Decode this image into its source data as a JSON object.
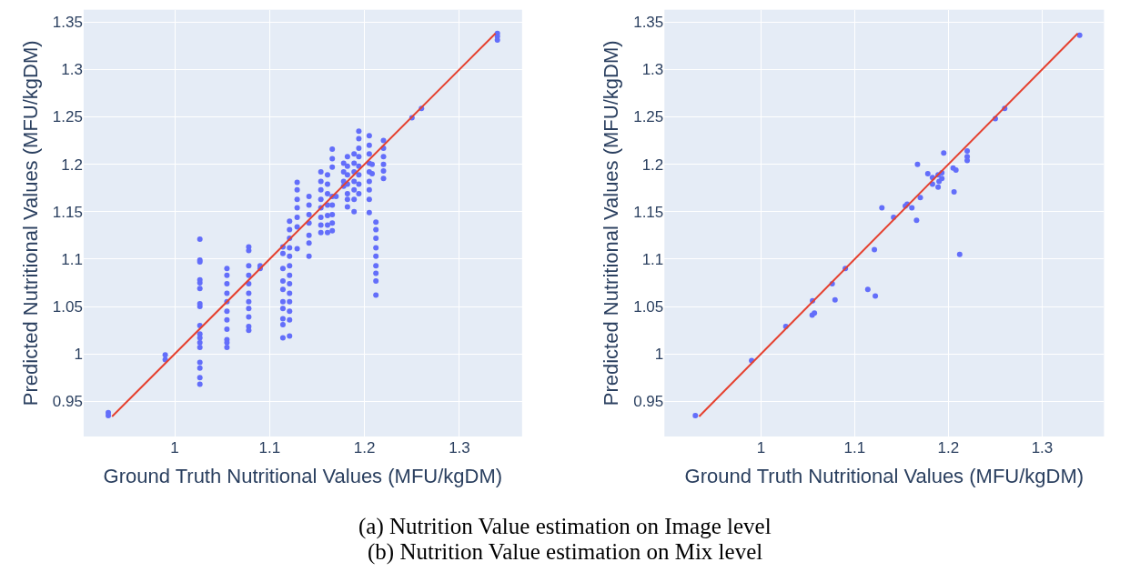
{
  "chart_data": [
    {
      "type": "scatter",
      "xlabel": "Ground Truth Nutritional Values (MFU/kgDM)",
      "ylabel": "Predicted Nutritional Values (MFU/kgDM)",
      "xlim": [
        0.904,
        1.366
      ],
      "ylim": [
        0.913,
        1.363
      ],
      "xticks": [
        1,
        1.1,
        1.2,
        1.3
      ],
      "yticks": [
        0.95,
        1,
        1.05,
        1.1,
        1.15,
        1.2,
        1.25,
        1.3,
        1.35
      ],
      "grid": true,
      "marker": "circle",
      "annotations": [
        "(a) Nutrition Value estimation on Image level"
      ],
      "series": [
        {
          "color": "#636efa",
          "x": [
            0.93,
            0.93,
            0.99,
            0.99,
            1.0265,
            1.0265,
            1.0265,
            1.0265,
            1.0265,
            1.0265,
            1.0265,
            1.0265,
            1.0265,
            1.0265,
            1.0265,
            1.0265,
            1.0265,
            1.0265,
            1.0265,
            1.0265,
            1.0265,
            1.055,
            1.055,
            1.055,
            1.055,
            1.055,
            1.055,
            1.055,
            1.055,
            1.055,
            1.055,
            1.055,
            1.078,
            1.078,
            1.078,
            1.078,
            1.078,
            1.078,
            1.078,
            1.078,
            1.078,
            1.078,
            1.078,
            1.09,
            1.09,
            1.114,
            1.114,
            1.114,
            1.114,
            1.114,
            1.114,
            1.114,
            1.114,
            1.114,
            1.114,
            1.121,
            1.121,
            1.121,
            1.121,
            1.121,
            1.121,
            1.121,
            1.121,
            1.121,
            1.121,
            1.121,
            1.121,
            1.121,
            1.129,
            1.129,
            1.129,
            1.129,
            1.129,
            1.129,
            1.129,
            1.1415,
            1.1415,
            1.1415,
            1.1415,
            1.1415,
            1.1415,
            1.1415,
            1.154,
            1.154,
            1.154,
            1.154,
            1.154,
            1.154,
            1.154,
            1.154,
            1.161,
            1.161,
            1.161,
            1.161,
            1.161,
            1.161,
            1.161,
            1.166,
            1.166,
            1.166,
            1.166,
            1.166,
            1.166,
            1.166,
            1.166,
            1.17,
            1.178,
            1.178,
            1.178,
            1.178,
            1.182,
            1.182,
            1.182,
            1.182,
            1.182,
            1.182,
            1.182,
            1.189,
            1.189,
            1.189,
            1.189,
            1.189,
            1.189,
            1.189,
            1.194,
            1.194,
            1.194,
            1.194,
            1.194,
            1.194,
            1.194,
            1.194,
            1.205,
            1.205,
            1.205,
            1.205,
            1.205,
            1.205,
            1.205,
            1.205,
            1.205,
            1.208,
            1.208,
            1.212,
            1.212,
            1.212,
            1.212,
            1.212,
            1.212,
            1.212,
            1.212,
            1.212,
            1.22,
            1.22,
            1.22,
            1.22,
            1.22,
            1.22,
            1.25,
            1.26,
            1.34,
            1.34,
            1.34
          ],
          "values": [
            0.938,
            0.935,
            0.999,
            0.994,
            1.121,
            1.099,
            1.097,
            1.078,
            1.075,
            1.069,
            1.053,
            1.05,
            1.03,
            1.021,
            1.017,
            1.012,
            1.007,
            0.991,
            0.985,
            0.975,
            0.968,
            1.09,
            1.083,
            1.074,
            1.064,
            1.055,
            1.045,
            1.036,
            1.026,
            1.015,
            1.012,
            1.007,
            1.113,
            1.109,
            1.093,
            1.083,
            1.074,
            1.064,
            1.055,
            1.048,
            1.039,
            1.029,
            1.025,
            1.093,
            1.09,
            1.113,
            1.106,
            1.09,
            1.077,
            1.068,
            1.055,
            1.048,
            1.037,
            1.031,
            1.017,
            1.14,
            1.131,
            1.122,
            1.112,
            1.103,
            1.093,
            1.083,
            1.074,
            1.064,
            1.055,
            1.045,
            1.036,
            1.019,
            1.181,
            1.173,
            1.163,
            1.154,
            1.144,
            1.134,
            1.111,
            1.166,
            1.157,
            1.147,
            1.138,
            1.125,
            1.117,
            1.103,
            1.192,
            1.182,
            1.173,
            1.163,
            1.154,
            1.144,
            1.136,
            1.128,
            1.189,
            1.179,
            1.169,
            1.157,
            1.146,
            1.136,
            1.128,
            1.216,
            1.206,
            1.197,
            1.166,
            1.157,
            1.147,
            1.138,
            1.13,
            1.166,
            1.201,
            1.192,
            1.182,
            1.177,
            1.208,
            1.198,
            1.189,
            1.179,
            1.169,
            1.163,
            1.155,
            1.211,
            1.201,
            1.192,
            1.182,
            1.173,
            1.163,
            1.15,
            1.235,
            1.227,
            1.217,
            1.208,
            1.198,
            1.189,
            1.179,
            1.169,
            1.23,
            1.22,
            1.211,
            1.201,
            1.192,
            1.182,
            1.173,
            1.163,
            1.149,
            1.2,
            1.19,
            1.139,
            1.131,
            1.122,
            1.112,
            1.103,
            1.093,
            1.085,
            1.077,
            1.062,
            1.225,
            1.217,
            1.208,
            1.2,
            1.193,
            1.185,
            1.249,
            1.259,
            1.338,
            1.335,
            1.331
          ]
        },
        {
          "type": "line",
          "color": "#e5412f",
          "marker": "none",
          "line_style": "solid",
          "x": [
            0.934,
            1.338
          ],
          "values": [
            0.934,
            1.338
          ]
        }
      ]
    },
    {
      "type": "scatter",
      "xlabel": "Ground Truth Nutritional Values (MFU/kgDM)",
      "ylabel": "Predicted Nutritional Values (MFU/kgDM)",
      "xlim": [
        0.897,
        1.366
      ],
      "ylim": [
        0.913,
        1.363
      ],
      "xticks": [
        1,
        1.1,
        1.2,
        1.3
      ],
      "yticks": [
        0.95,
        1,
        1.05,
        1.1,
        1.15,
        1.2,
        1.25,
        1.3,
        1.35
      ],
      "grid": true,
      "marker": "circle",
      "annotations": [
        "(b) Nutrition Value estimation on Mix level"
      ],
      "series": [
        {
          "color": "#636efa",
          "x": [
            0.93,
            0.99,
            1.0265,
            1.055,
            1.0546,
            1.057,
            1.076,
            1.079,
            1.09,
            1.114,
            1.122,
            1.121,
            1.129,
            1.1415,
            1.154,
            1.156,
            1.161,
            1.166,
            1.167,
            1.17,
            1.178,
            1.183,
            1.183,
            1.189,
            1.19,
            1.189,
            1.193,
            1.193,
            1.195,
            1.205,
            1.208,
            1.206,
            1.212,
            1.22,
            1.22,
            1.22,
            1.25,
            1.26,
            1.34
          ],
          "values": [
            0.935,
            0.993,
            1.029,
            1.056,
            1.041,
            1.043,
            1.074,
            1.057,
            1.09,
            1.068,
            1.061,
            1.11,
            1.154,
            1.144,
            1.156,
            1.158,
            1.154,
            1.141,
            1.2,
            1.165,
            1.19,
            1.186,
            1.179,
            1.189,
            1.182,
            1.176,
            1.191,
            1.185,
            1.212,
            1.196,
            1.194,
            1.171,
            1.105,
            1.214,
            1.208,
            1.204,
            1.248,
            1.259,
            1.336
          ]
        },
        {
          "type": "line",
          "color": "#e5412f",
          "marker": "none",
          "line_style": "solid",
          "x": [
            0.934,
            1.338
          ],
          "values": [
            0.934,
            1.338
          ]
        }
      ]
    }
  ]
}
